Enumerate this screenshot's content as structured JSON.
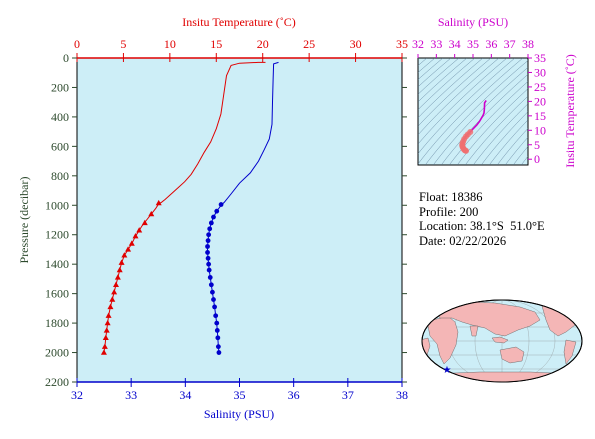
{
  "colors": {
    "temperature": "#e00000",
    "salinity": "#0000cc",
    "inset": "#cc00cc",
    "plot_bg": "#cdeef7",
    "axis_dark": "#2d4a2d",
    "map_land": "#f4b6b6",
    "map_ocean": "#cdeef7"
  },
  "info": {
    "float_label": "Float:",
    "float_value": "18386",
    "profile_label": "Profile:",
    "profile_value": "200",
    "location_label": "Location:",
    "location_value": "38.1°S  51.0°E",
    "date_label": "Date:",
    "date_value": "02/22/2026"
  },
  "chart_data": [
    {
      "type": "line",
      "title": "",
      "ylabel": "Pressure (decibar)",
      "y_ticks": [
        0,
        200,
        400,
        600,
        800,
        1000,
        1200,
        1400,
        1600,
        1800,
        2000,
        2200
      ],
      "ylim": [
        0,
        2200
      ],
      "y_inverted": true,
      "grid": false,
      "top_axis": {
        "label": "Insitu Temperature (˚C)",
        "ticks": [
          0,
          5,
          10,
          15,
          20,
          25,
          30,
          35
        ],
        "lim": [
          0,
          35
        ]
      },
      "bottom_axis": {
        "label": "Salinity (PSU)",
        "ticks": [
          32,
          33,
          34,
          35,
          36,
          37,
          38
        ],
        "lim": [
          32,
          38
        ]
      },
      "series": [
        {
          "name": "Insitu Temperature",
          "axis": "top",
          "marker": "triangle",
          "points": [
            [
              20.3,
              30
            ],
            [
              19.5,
              30
            ],
            [
              17.5,
              35
            ],
            [
              16.6,
              50
            ],
            [
              16.1,
              120
            ],
            [
              15.8,
              250
            ],
            [
              15.5,
              380
            ],
            [
              15.0,
              480
            ],
            [
              14.4,
              570
            ],
            [
              13.7,
              640
            ],
            [
              13.0,
              720
            ],
            [
              12.3,
              790
            ],
            [
              11.6,
              840
            ],
            [
              10.9,
              880
            ],
            [
              10.2,
              920
            ],
            [
              9.5,
              960
            ],
            [
              9.1,
              980
            ],
            [
              8.8,
              990
            ],
            [
              8.5,
              1020
            ],
            [
              8.0,
              1060
            ],
            [
              7.5,
              1100
            ],
            [
              7.0,
              1140
            ],
            [
              6.6,
              1180
            ],
            [
              6.3,
              1210
            ],
            [
              5.9,
              1260
            ],
            [
              5.5,
              1300
            ],
            [
              5.1,
              1340
            ],
            [
              4.8,
              1390
            ],
            [
              4.6,
              1440
            ],
            [
              4.4,
              1490
            ],
            [
              4.2,
              1540
            ],
            [
              4.0,
              1590
            ],
            [
              3.8,
              1640
            ],
            [
              3.6,
              1690
            ],
            [
              3.4,
              1750
            ],
            [
              3.3,
              1800
            ],
            [
              3.2,
              1850
            ],
            [
              3.1,
              1900
            ],
            [
              3.0,
              1960
            ],
            [
              2.9,
              2000
            ]
          ],
          "marker_points": [
            [
              8.8,
              985
            ],
            [
              8.0,
              1060
            ],
            [
              7.3,
              1120
            ],
            [
              6.7,
              1170
            ],
            [
              6.3,
              1210
            ],
            [
              5.9,
              1260
            ],
            [
              5.5,
              1300
            ],
            [
              5.1,
              1340
            ],
            [
              4.8,
              1390
            ],
            [
              4.6,
              1440
            ],
            [
              4.4,
              1490
            ],
            [
              4.2,
              1540
            ],
            [
              4.0,
              1590
            ],
            [
              3.8,
              1640
            ],
            [
              3.6,
              1690
            ],
            [
              3.4,
              1750
            ],
            [
              3.3,
              1800
            ],
            [
              3.2,
              1850
            ],
            [
              3.1,
              1900
            ],
            [
              3.0,
              1960
            ],
            [
              2.9,
              2000
            ]
          ]
        },
        {
          "name": "Salinity",
          "axis": "bottom",
          "marker": "circle",
          "points": [
            [
              35.72,
              30
            ],
            [
              35.63,
              40
            ],
            [
              35.62,
              150
            ],
            [
              35.61,
              300
            ],
            [
              35.6,
              450
            ],
            [
              35.55,
              550
            ],
            [
              35.46,
              620
            ],
            [
              35.35,
              700
            ],
            [
              35.2,
              780
            ],
            [
              35.0,
              850
            ],
            [
              34.85,
              920
            ],
            [
              34.72,
              980
            ],
            [
              34.66,
              1000
            ],
            [
              34.58,
              1040
            ],
            [
              34.52,
              1080
            ],
            [
              34.48,
              1120
            ],
            [
              34.45,
              1160
            ],
            [
              34.43,
              1200
            ],
            [
              34.42,
              1240
            ],
            [
              34.41,
              1280
            ],
            [
              34.41,
              1320
            ],
            [
              34.42,
              1360
            ],
            [
              34.43,
              1400
            ],
            [
              34.44,
              1440
            ],
            [
              34.46,
              1490
            ],
            [
              34.48,
              1540
            ],
            [
              34.5,
              1590
            ],
            [
              34.52,
              1640
            ],
            [
              34.54,
              1690
            ],
            [
              34.56,
              1750
            ],
            [
              34.58,
              1800
            ],
            [
              34.59,
              1850
            ],
            [
              34.6,
              1900
            ],
            [
              34.61,
              1960
            ],
            [
              34.62,
              2000
            ]
          ],
          "marker_points": [
            [
              34.66,
              995
            ],
            [
              34.58,
              1040
            ],
            [
              34.52,
              1080
            ],
            [
              34.48,
              1120
            ],
            [
              34.45,
              1160
            ],
            [
              34.43,
              1200
            ],
            [
              34.42,
              1240
            ],
            [
              34.41,
              1280
            ],
            [
              34.41,
              1320
            ],
            [
              34.42,
              1360
            ],
            [
              34.43,
              1400
            ],
            [
              34.44,
              1440
            ],
            [
              34.46,
              1490
            ],
            [
              34.48,
              1540
            ],
            [
              34.5,
              1590
            ],
            [
              34.52,
              1640
            ],
            [
              34.54,
              1690
            ],
            [
              34.56,
              1750
            ],
            [
              34.58,
              1800
            ],
            [
              34.59,
              1850
            ],
            [
              34.6,
              1900
            ],
            [
              34.61,
              1960
            ],
            [
              34.62,
              2000
            ]
          ]
        }
      ]
    },
    {
      "type": "scatter",
      "title": "",
      "top_axis": {
        "label": "Salinity (PSU)",
        "ticks": [
          32,
          33,
          34,
          35,
          36,
          37,
          38
        ],
        "lim": [
          32,
          38
        ]
      },
      "right_axis": {
        "label": "Insitu Temperature (˚C)",
        "ticks": [
          0,
          5,
          10,
          15,
          20,
          25,
          30,
          35
        ],
        "lim": [
          -2,
          35
        ]
      },
      "series": [
        {
          "name": "T-S profile",
          "points": [
            [
              35.72,
              20.3
            ],
            [
              35.63,
              19.5
            ],
            [
              35.62,
              17.5
            ],
            [
              35.6,
              16.0
            ],
            [
              35.55,
              15.2
            ],
            [
              35.46,
              14.2
            ],
            [
              35.35,
              13.0
            ],
            [
              35.2,
              11.8
            ],
            [
              35.0,
              10.5
            ],
            [
              34.85,
              9.4
            ],
            [
              34.72,
              8.6
            ],
            [
              34.62,
              7.9
            ],
            [
              34.52,
              7.0
            ],
            [
              34.46,
              6.1
            ],
            [
              34.42,
              5.3
            ],
            [
              34.41,
              4.8
            ],
            [
              34.43,
              4.3
            ],
            [
              34.46,
              3.9
            ],
            [
              34.5,
              3.5
            ],
            [
              34.54,
              3.2
            ],
            [
              34.58,
              3.0
            ],
            [
              34.62,
              2.9
            ]
          ]
        }
      ],
      "density_contours": true
    },
    {
      "type": "map",
      "marker": {
        "name": "float-location",
        "lat": -38.1,
        "lon": 51.0
      }
    }
  ]
}
